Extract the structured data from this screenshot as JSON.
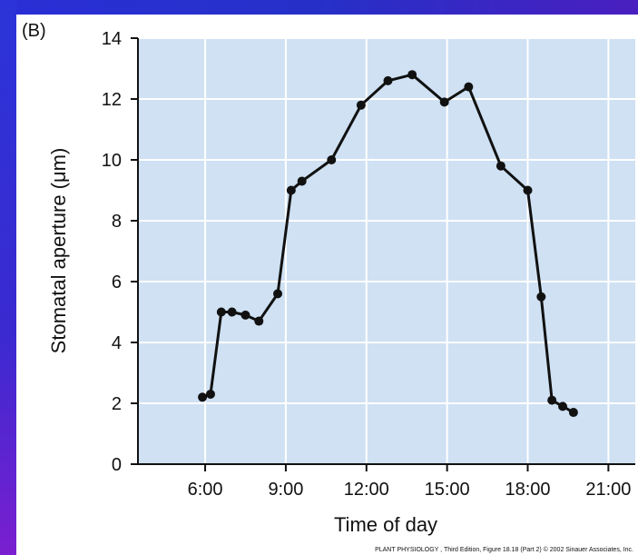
{
  "chart_data": {
    "type": "line",
    "panel_label": "(B)",
    "xlabel": "Time of day",
    "ylabel": "Stomatal aperture (μm)",
    "ylim": [
      0,
      14
    ],
    "y_ticks": [
      0,
      2,
      4,
      6,
      8,
      10,
      12,
      14
    ],
    "xlim": [
      3.5,
      22
    ],
    "x_ticks": [
      6,
      9,
      12,
      15,
      18,
      21
    ],
    "x_tick_labels": [
      "6:00",
      "9:00",
      "12:00",
      "15:00",
      "18:00",
      "21:00"
    ],
    "grid": true,
    "series": [
      {
        "x": [
          5.9,
          6.2,
          6.6,
          7.0,
          7.5,
          8.0,
          8.7,
          9.2,
          9.6,
          10.7,
          11.8,
          12.8,
          13.7,
          14.9,
          15.8,
          17.0,
          18.0,
          18.5,
          18.9,
          19.3,
          19.7
        ],
        "y": [
          2.2,
          2.3,
          5.0,
          5.0,
          4.9,
          4.7,
          5.6,
          9.0,
          9.3,
          10.0,
          11.8,
          12.6,
          12.8,
          11.9,
          12.4,
          9.8,
          9.0,
          5.5,
          2.1,
          1.9,
          1.7
        ]
      }
    ]
  },
  "credit": "PLANT PHYSIOLOGY , Third Edition, Figure 18.18 (Part 2)  © 2002 Sinauer Associates, Inc.",
  "colors": {
    "plot_background": "#cfe1f3",
    "grid": "#ffffff",
    "line": "#111111",
    "page_background": "#2a2fd6"
  }
}
